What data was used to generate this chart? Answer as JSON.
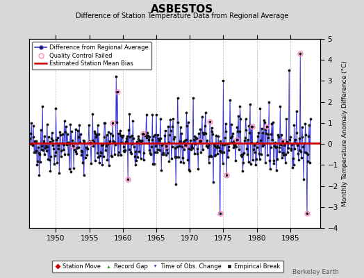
{
  "title": "ASBESTOS",
  "subtitle": "Difference of Station Temperature Data from Regional Average",
  "ylabel_right": "Monthly Temperature Anomaly Difference (°C)",
  "background_color": "#d8d8d8",
  "plot_bg_color": "#ffffff",
  "xlim": [
    1946.0,
    1989.5
  ],
  "ylim": [
    -4,
    5
  ],
  "yticks": [
    -4,
    -3,
    -2,
    -1,
    0,
    1,
    2,
    3,
    4,
    5
  ],
  "xticks": [
    1950,
    1955,
    1960,
    1965,
    1970,
    1975,
    1980,
    1985
  ],
  "bias_line_y": 0.05,
  "bias_color": "#cc0000",
  "bias_linewidth": 2.0,
  "line_color": "#3333cc",
  "stem_color": "#8888ff",
  "dot_color": "#111111",
  "qc_failed_color": "#ff88bb",
  "watermark": "Berkeley Earth",
  "seed": 42,
  "n_points": 504,
  "start_year": 1946.083,
  "end_year": 1988.0
}
